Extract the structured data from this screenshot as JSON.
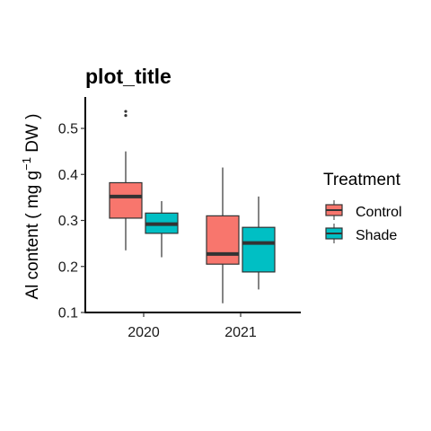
{
  "chart_data": {
    "type": "boxplot",
    "title": "plot_title",
    "xlabel": "",
    "ylabel": {
      "prefix": "Al content ( mg g",
      "superscript": "−1",
      "suffix": " DW )"
    },
    "categories": [
      "2020",
      "2021"
    ],
    "ylim": [
      0.1,
      0.56
    ],
    "yticks": [
      0.1,
      0.2,
      0.3,
      0.4,
      0.5
    ],
    "ytick_labels": [
      "0.1",
      "0.2",
      "0.3",
      "0.4",
      "0.5"
    ],
    "grid": false,
    "legend": {
      "title": "Treatment",
      "placement": "right",
      "entries": [
        "Control",
        "Shade"
      ]
    },
    "series": [
      {
        "name": "Control",
        "color": "#F8766D",
        "boxes": [
          {
            "category": "2020",
            "whisker_low": 0.235,
            "q1": 0.305,
            "median": 0.352,
            "q3": 0.382,
            "whisker_high": 0.45,
            "outliers": [
              0.528,
              0.537
            ]
          },
          {
            "category": "2021",
            "whisker_low": 0.12,
            "q1": 0.205,
            "median": 0.227,
            "q3": 0.31,
            "whisker_high": 0.415,
            "outliers": []
          }
        ]
      },
      {
        "name": "Shade",
        "color": "#00BFC4",
        "boxes": [
          {
            "category": "2020",
            "whisker_low": 0.22,
            "q1": 0.272,
            "median": 0.292,
            "q3": 0.316,
            "whisker_high": 0.342,
            "outliers": []
          },
          {
            "category": "2021",
            "whisker_low": 0.15,
            "q1": 0.188,
            "median": 0.251,
            "q3": 0.285,
            "whisker_high": 0.352,
            "outliers": []
          }
        ]
      }
    ]
  }
}
